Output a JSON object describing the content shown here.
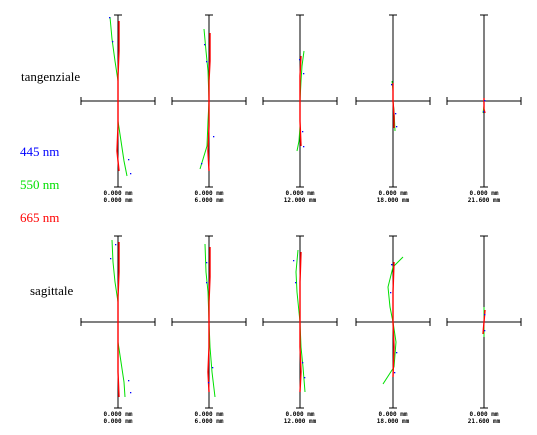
{
  "colors": {
    "blue": "#0000ff",
    "green": "#00e000",
    "red": "#ff0000",
    "axis": "#000000"
  },
  "labels": {
    "tangential": "tangenziale",
    "sagittal": "sagittale"
  },
  "legend": [
    {
      "text": "445 nm",
      "color": "#0000ff"
    },
    {
      "text": "550 nm",
      "color": "#00e000"
    },
    {
      "text": "665 nm",
      "color": "#ff0000"
    }
  ],
  "fields": [
    {
      "line1": "0.000 mm",
      "line2": "0.000 mm"
    },
    {
      "line1": "0.000 mm",
      "line2": "6.000 mm"
    },
    {
      "line1": "0.000 mm",
      "line2": "12.000 mm"
    },
    {
      "line1": "0.000 mm",
      "line2": "18.000 mm"
    },
    {
      "line1": "0.000 mm",
      "line2": "21.600 mm"
    }
  ],
  "curves": {
    "tangential": [
      {
        "green": [
          [
            -8,
            -84
          ],
          [
            -6,
            -62
          ],
          [
            -3,
            -40
          ],
          [
            0,
            -20
          ],
          [
            0,
            0
          ],
          [
            0,
            20
          ],
          [
            3,
            40
          ],
          [
            6,
            60
          ],
          [
            9,
            75
          ]
        ],
        "red": [
          [
            1,
            -80
          ],
          [
            1,
            -50
          ],
          [
            0,
            -25
          ],
          [
            0,
            0
          ],
          [
            0,
            25
          ],
          [
            -1,
            50
          ],
          [
            1,
            70
          ]
        ],
        "blue": [
          [
            -6,
            -60
          ],
          [
            -9,
            -84
          ],
          [
            12,
            72
          ],
          [
            10,
            58
          ]
        ]
      },
      {
        "green": [
          [
            -5,
            -72
          ],
          [
            -3,
            -50
          ],
          [
            -1,
            -30
          ],
          [
            0,
            0
          ],
          [
            -1,
            20
          ],
          [
            -2,
            45
          ],
          [
            -9,
            68
          ]
        ],
        "red": [
          [
            1,
            -68
          ],
          [
            1,
            -40
          ],
          [
            0,
            -20
          ],
          [
            0,
            0
          ],
          [
            0,
            25
          ],
          [
            -1,
            50
          ],
          [
            0,
            70
          ]
        ],
        "blue": [
          [
            -5,
            -57
          ],
          [
            -3,
            -40
          ],
          [
            -8,
            62
          ],
          [
            4,
            35
          ]
        ]
      },
      {
        "green": [
          [
            4,
            -50
          ],
          [
            2,
            -35
          ],
          [
            1,
            -20
          ],
          [
            0,
            0
          ],
          [
            0,
            10
          ],
          [
            0,
            25
          ],
          [
            -1,
            40
          ],
          [
            -3,
            50
          ]
        ],
        "red": [
          [
            1,
            -45
          ],
          [
            0,
            -25
          ],
          [
            0,
            0
          ],
          [
            0,
            20
          ],
          [
            1,
            45
          ]
        ],
        "blue": [
          [
            -1,
            -42
          ],
          [
            3,
            -28
          ],
          [
            3,
            45
          ],
          [
            2,
            30
          ]
        ]
      },
      {
        "green": [
          [
            -1,
            -20
          ],
          [
            0,
            -10
          ],
          [
            0,
            0
          ],
          [
            1,
            10
          ],
          [
            2,
            30
          ]
        ],
        "red": [
          [
            0,
            -18
          ],
          [
            0,
            0
          ],
          [
            1,
            15
          ],
          [
            1,
            27
          ]
        ],
        "blue": [
          [
            -2,
            -17
          ],
          [
            2,
            12
          ],
          [
            3,
            25
          ]
        ]
      },
      {
        "green": [
          [
            0,
            -2
          ],
          [
            0,
            0
          ],
          [
            0,
            5
          ],
          [
            -1,
            12
          ]
        ],
        "red": [
          [
            0,
            -3
          ],
          [
            0,
            0
          ],
          [
            0,
            8
          ],
          [
            1,
            12
          ]
        ],
        "blue": [
          [
            0,
            -1
          ],
          [
            -1,
            10
          ]
        ]
      }
    ],
    "sagittal": [
      {
        "green": [
          [
            -6,
            -82
          ],
          [
            -5,
            -60
          ],
          [
            -3,
            -40
          ],
          [
            0,
            -20
          ],
          [
            0,
            0
          ],
          [
            0,
            20
          ],
          [
            3,
            40
          ],
          [
            6,
            60
          ],
          [
            7,
            75
          ]
        ],
        "red": [
          [
            1,
            -80
          ],
          [
            1,
            -50
          ],
          [
            0,
            -25
          ],
          [
            0,
            0
          ],
          [
            0,
            25
          ],
          [
            0,
            50
          ],
          [
            1,
            75
          ]
        ],
        "blue": [
          [
            -8,
            -64
          ],
          [
            -3,
            -78
          ],
          [
            12,
            70
          ],
          [
            10,
            58
          ]
        ]
      },
      {
        "green": [
          [
            -4,
            -78
          ],
          [
            -3,
            -50
          ],
          [
            -1,
            -30
          ],
          [
            0,
            0
          ],
          [
            1,
            25
          ],
          [
            3,
            50
          ],
          [
            6,
            75
          ]
        ],
        "red": [
          [
            1,
            -75
          ],
          [
            1,
            -45
          ],
          [
            0,
            -20
          ],
          [
            0,
            0
          ],
          [
            0,
            25
          ],
          [
            -1,
            50
          ],
          [
            0,
            70
          ]
        ],
        "blue": [
          [
            -3,
            -60
          ],
          [
            -3,
            -40
          ],
          [
            -1,
            60
          ],
          [
            3,
            45
          ]
        ]
      },
      {
        "green": [
          [
            -2,
            -72
          ],
          [
            -4,
            -50
          ],
          [
            -3,
            -30
          ],
          [
            0,
            0
          ],
          [
            1,
            25
          ],
          [
            3,
            45
          ],
          [
            5,
            70
          ]
        ],
        "red": [
          [
            1,
            -70
          ],
          [
            0,
            -40
          ],
          [
            0,
            -20
          ],
          [
            0,
            0
          ],
          [
            0,
            25
          ],
          [
            1,
            50
          ],
          [
            0,
            70
          ]
        ],
        "blue": [
          [
            -7,
            -62
          ],
          [
            -5,
            -40
          ],
          [
            4,
            55
          ],
          [
            2,
            40
          ]
        ]
      },
      {
        "green": [
          [
            10,
            -65
          ],
          [
            0,
            -55
          ],
          [
            -5,
            -35
          ],
          [
            -3,
            -15
          ],
          [
            0,
            0
          ],
          [
            3,
            20
          ],
          [
            1,
            45
          ],
          [
            -10,
            62
          ]
        ],
        "red": [
          [
            1,
            -60
          ],
          [
            0,
            -30
          ],
          [
            0,
            0
          ],
          [
            1,
            25
          ],
          [
            0,
            55
          ]
        ],
        "blue": [
          [
            -2,
            -58
          ],
          [
            -3,
            -30
          ],
          [
            3,
            30
          ],
          [
            1,
            50
          ]
        ]
      },
      {
        "green": [
          [
            0,
            -15
          ],
          [
            0,
            0
          ],
          [
            0,
            15
          ]
        ],
        "red": [
          [
            1,
            -12
          ],
          [
            0,
            0
          ],
          [
            -1,
            12
          ]
        ],
        "blue": [
          [
            0,
            -8
          ],
          [
            0,
            8
          ]
        ]
      }
    ]
  }
}
